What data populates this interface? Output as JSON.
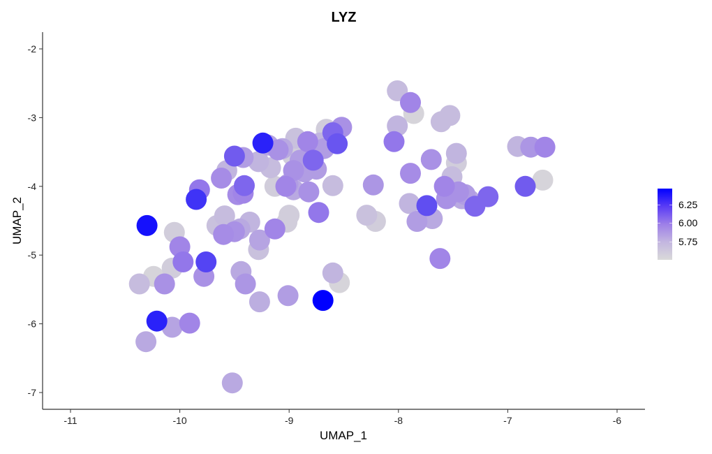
{
  "chart_data": {
    "type": "scatter",
    "title": "LYZ",
    "xlabel": "UMAP_1",
    "ylabel": "UMAP_2",
    "xlim": [
      -11.25,
      -5.75
    ],
    "ylim": [
      -7.25,
      -1.75
    ],
    "x_ticks": [
      -11,
      -10,
      -9,
      -8,
      -7,
      -6
    ],
    "y_ticks": [
      -2,
      -3,
      -4,
      -5,
      -6,
      -7
    ],
    "grid": false,
    "legend": {
      "position": "right",
      "type": "colorbar",
      "ticks": [
        "6.25",
        "6.00",
        "5.75"
      ],
      "low_color": "#d9d9d9",
      "high_color": "#0000ff",
      "range": [
        5.6,
        6.35
      ]
    },
    "points": [
      [
        -10.3,
        -4.57,
        6.3
      ],
      [
        -10.05,
        -4.67,
        5.65
      ],
      [
        -10.0,
        -4.88,
        5.95
      ],
      [
        -9.97,
        -5.1,
        6.0
      ],
      [
        -9.76,
        -5.1,
        6.15
      ],
      [
        -9.78,
        -5.31,
        5.9
      ],
      [
        -10.07,
        -5.19,
        5.65
      ],
      [
        -10.24,
        -5.31,
        5.62
      ],
      [
        -10.37,
        -5.42,
        5.72
      ],
      [
        -10.14,
        -5.42,
        5.9
      ],
      [
        -10.21,
        -5.96,
        6.25
      ],
      [
        -10.07,
        -6.05,
        5.82
      ],
      [
        -9.91,
        -5.99,
        5.95
      ],
      [
        -10.31,
        -6.26,
        5.8
      ],
      [
        -9.52,
        -6.86,
        5.8
      ],
      [
        -9.85,
        -4.19,
        6.2
      ],
      [
        -9.82,
        -4.05,
        6.0
      ],
      [
        -9.62,
        -3.88,
        5.92
      ],
      [
        -9.57,
        -3.77,
        5.75
      ],
      [
        -9.47,
        -4.12,
        5.92
      ],
      [
        -9.42,
        -4.1,
        5.95
      ],
      [
        -9.41,
        -3.99,
        6.05
      ],
      [
        -9.5,
        -3.56,
        6.08
      ],
      [
        -9.42,
        -3.58,
        5.85
      ],
      [
        -9.28,
        -3.64,
        5.75
      ],
      [
        -9.24,
        -3.37,
        6.25
      ],
      [
        -9.19,
        -3.4,
        5.82
      ],
      [
        -9.17,
        -3.73,
        5.72
      ],
      [
        -9.13,
        -4.0,
        5.65
      ],
      [
        -9.1,
        -3.47,
        5.9
      ],
      [
        -9.06,
        -3.45,
        5.8
      ],
      [
        -9.03,
        -4.0,
        5.95
      ],
      [
        -9.01,
        -3.97,
        5.85
      ],
      [
        -8.96,
        -3.77,
        5.9
      ],
      [
        -8.94,
        -3.3,
        5.7
      ],
      [
        -8.9,
        -3.62,
        5.85
      ],
      [
        -8.86,
        -3.79,
        5.85
      ],
      [
        -8.83,
        -3.35,
        5.95
      ],
      [
        -8.8,
        -3.47,
        5.8
      ],
      [
        -8.78,
        -3.62,
        6.05
      ],
      [
        -8.75,
        -3.75,
        5.85
      ],
      [
        -8.72,
        -3.37,
        5.75
      ],
      [
        -8.68,
        -3.45,
        5.85
      ],
      [
        -8.66,
        -3.17,
        5.65
      ],
      [
        -8.6,
        -3.22,
        6.05
      ],
      [
        -8.62,
        -3.3,
        5.75
      ],
      [
        -8.56,
        -3.38,
        6.1
      ],
      [
        -8.52,
        -3.14,
        5.9
      ],
      [
        -8.6,
        -3.99,
        5.72
      ],
      [
        -8.82,
        -4.08,
        5.9
      ],
      [
        -8.73,
        -4.38,
        6.0
      ],
      [
        -8.96,
        -4.05,
        5.8
      ],
      [
        -8.97,
        -3.55,
        5.65
      ],
      [
        -9.0,
        -4.42,
        5.65
      ],
      [
        -9.02,
        -4.52,
        5.65
      ],
      [
        -9.13,
        -4.62,
        5.95
      ],
      [
        -9.27,
        -4.78,
        5.82
      ],
      [
        -9.28,
        -4.92,
        5.7
      ],
      [
        -9.36,
        -4.52,
        5.75
      ],
      [
        -9.45,
        -4.62,
        5.8
      ],
      [
        -9.5,
        -4.66,
        5.9
      ],
      [
        -9.6,
        -4.7,
        5.92
      ],
      [
        -9.59,
        -4.43,
        5.72
      ],
      [
        -9.66,
        -4.57,
        5.7
      ],
      [
        -9.44,
        -5.24,
        5.8
      ],
      [
        -9.4,
        -5.42,
        5.88
      ],
      [
        -9.27,
        -5.68,
        5.78
      ],
      [
        -9.01,
        -5.59,
        5.85
      ],
      [
        -8.69,
        -5.66,
        6.35
      ],
      [
        -8.6,
        -5.26,
        5.75
      ],
      [
        -8.54,
        -5.4,
        5.62
      ],
      [
        -8.29,
        -4.42,
        5.7
      ],
      [
        -8.21,
        -4.51,
        5.65
      ],
      [
        -8.23,
        -3.98,
        5.88
      ],
      [
        -8.04,
        -3.35,
        6.0
      ],
      [
        -8.01,
        -3.12,
        5.75
      ],
      [
        -8.01,
        -2.61,
        5.72
      ],
      [
        -7.89,
        -2.78,
        5.95
      ],
      [
        -7.86,
        -2.94,
        5.62
      ],
      [
        -7.89,
        -3.81,
        5.92
      ],
      [
        -7.9,
        -4.25,
        5.75
      ],
      [
        -7.83,
        -4.51,
        5.85
      ],
      [
        -7.74,
        -4.28,
        6.12
      ],
      [
        -7.7,
        -3.61,
        5.9
      ],
      [
        -7.69,
        -4.47,
        5.8
      ],
      [
        -7.62,
        -5.05,
        5.95
      ],
      [
        -7.61,
        -3.06,
        5.72
      ],
      [
        -7.53,
        -2.97,
        5.72
      ],
      [
        -7.47,
        -3.52,
        5.75
      ],
      [
        -7.47,
        -3.66,
        5.65
      ],
      [
        -7.51,
        -3.86,
        5.72
      ],
      [
        -7.58,
        -4.0,
        5.95
      ],
      [
        -7.56,
        -4.18,
        5.9
      ],
      [
        -7.45,
        -4.08,
        5.9
      ],
      [
        -7.42,
        -4.18,
        5.8
      ],
      [
        -7.39,
        -4.12,
        5.85
      ],
      [
        -7.35,
        -4.2,
        5.8
      ],
      [
        -7.3,
        -4.29,
        6.05
      ],
      [
        -7.18,
        -4.15,
        6.05
      ],
      [
        -7.42,
        -4.15,
        5.62
      ],
      [
        -6.91,
        -3.42,
        5.75
      ],
      [
        -6.79,
        -3.43,
        5.88
      ],
      [
        -6.66,
        -3.43,
        5.95
      ],
      [
        -6.84,
        -4.0,
        6.08
      ],
      [
        -6.68,
        -3.91,
        5.62
      ]
    ]
  }
}
